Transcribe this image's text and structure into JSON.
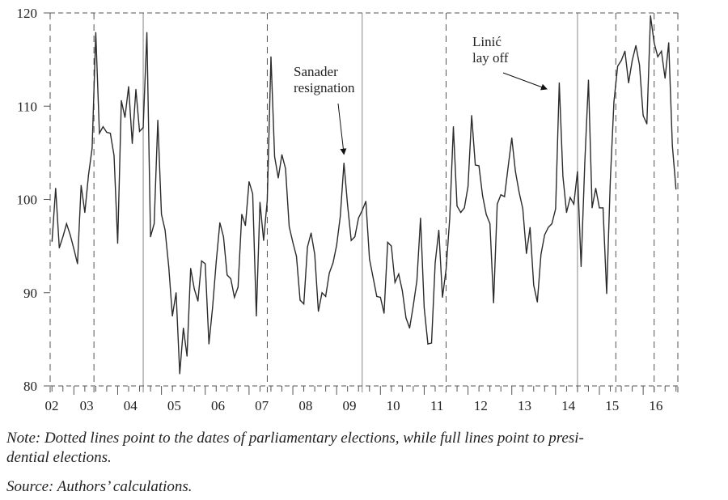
{
  "chart_data": {
    "type": "line",
    "title": "",
    "xlabel": "",
    "ylabel": "",
    "ylim": [
      80,
      120
    ],
    "yticks": [
      80,
      90,
      100,
      110,
      120
    ],
    "xlim_months_from_2002_start": [
      5.5,
      177.5
    ],
    "xtick_labels": [
      "02",
      "03",
      "04",
      "05",
      "06",
      "07",
      "08",
      "09",
      "10",
      "11",
      "12",
      "13",
      "14",
      "15",
      "16"
    ],
    "grid": false,
    "legend": "none",
    "series": [
      {
        "name": "index",
        "start_month_from_2002_start": 6,
        "step_months": 1,
        "values": [
          95.5,
          101.2,
          94.8,
          96.0,
          97.4,
          96.2,
          94.7,
          93.1,
          101.5,
          98.6,
          102.6,
          105.5,
          117.9,
          107.1,
          107.8,
          107.2,
          107.1,
          104.7,
          95.3,
          110.6,
          108.8,
          112.1,
          106.0,
          111.8,
          107.3,
          107.7,
          117.9,
          96.0,
          97.4,
          108.5,
          98.4,
          96.7,
          92.8,
          87.5,
          90.0,
          81.3,
          86.2,
          83.2,
          92.6,
          90.4,
          89.1,
          93.4,
          93.1,
          84.5,
          88.4,
          93.3,
          97.5,
          96.0,
          91.9,
          91.5,
          89.5,
          90.6,
          98.4,
          97.2,
          101.9,
          100.6,
          87.5,
          99.7,
          95.6,
          99.9,
          115.3,
          104.6,
          102.3,
          104.8,
          103.3,
          97.1,
          95.4,
          93.9,
          89.2,
          88.8,
          94.9,
          96.4,
          94.1,
          88.0,
          90.0,
          89.6,
          92.1,
          93.2,
          95.1,
          98.2,
          103.9,
          99.4,
          95.6,
          96.0,
          98.0,
          98.8,
          99.8,
          93.6,
          91.6,
          89.6,
          89.5,
          87.8,
          95.4,
          95.0,
          91.1,
          92.0,
          90.2,
          87.3,
          86.2,
          88.6,
          91.3,
          98.0,
          88.4,
          84.5,
          84.6,
          93.2,
          96.7,
          89.5,
          92.5,
          98.0,
          107.8,
          99.3,
          98.6,
          99.1,
          101.4,
          109.0,
          103.7,
          103.6,
          100.4,
          98.4,
          97.4,
          88.9,
          99.5,
          100.5,
          100.3,
          103.5,
          106.6,
          103.0,
          100.8,
          99.0,
          94.2,
          97.0,
          90.8,
          89.0,
          94.1,
          96.2,
          97.0,
          97.4,
          99.0,
          112.5,
          102.5,
          98.6,
          100.2,
          99.5,
          103.0,
          92.8,
          104.0,
          112.8,
          99.1,
          101.2,
          99.1,
          99.1,
          89.9,
          102.0,
          110.5,
          114.3,
          114.9,
          115.9,
          112.5,
          114.9,
          116.5,
          114.4,
          109.0,
          108.1,
          119.7,
          116.8,
          115.3,
          115.9,
          113.0,
          116.8,
          105.8,
          101.1
        ]
      }
    ],
    "vertical_lines": [
      {
        "kind": "parliamentary",
        "style": "dashed",
        "month_from_2002_start": 5.5
      },
      {
        "kind": "parliamentary",
        "style": "dashed",
        "month_from_2002_start": 17.5
      },
      {
        "kind": "presidential",
        "style": "solid",
        "month_from_2002_start": 31
      },
      {
        "kind": "parliamentary",
        "style": "dashed",
        "month_from_2002_start": 65
      },
      {
        "kind": "presidential",
        "style": "solid",
        "month_from_2002_start": 91
      },
      {
        "kind": "parliamentary",
        "style": "dashed",
        "month_from_2002_start": 114
      },
      {
        "kind": "presidential",
        "style": "solid",
        "month_from_2002_start": 150
      },
      {
        "kind": "parliamentary",
        "style": "dashed",
        "month_from_2002_start": 160.5
      },
      {
        "kind": "parliamentary",
        "style": "dashed",
        "month_from_2002_start": 171
      },
      {
        "kind": "parliamentary",
        "style": "dashed",
        "month_from_2002_start": 177.5
      }
    ],
    "annotations": [
      {
        "id": "sanader",
        "lines": [
          "Sanader",
          "resignation"
        ],
        "target_month_from_2002_start": 86,
        "target_value": 104.5
      },
      {
        "id": "linic",
        "lines": [
          "Linić",
          "lay off"
        ],
        "target_month_from_2002_start": 140,
        "target_value": 112.5
      }
    ]
  },
  "caption": {
    "note": "Note: Dotted lines point to the dates of parliamentary elections, while full lines point to presi-",
    "note_cont": "dential elections.",
    "source": "Source: Authors’ calculations."
  },
  "colors": {
    "line": "#2b2b2b",
    "axis": "#555555",
    "marker_dashed": "#555555",
    "marker_solid": "#888888",
    "text": "#222222"
  }
}
